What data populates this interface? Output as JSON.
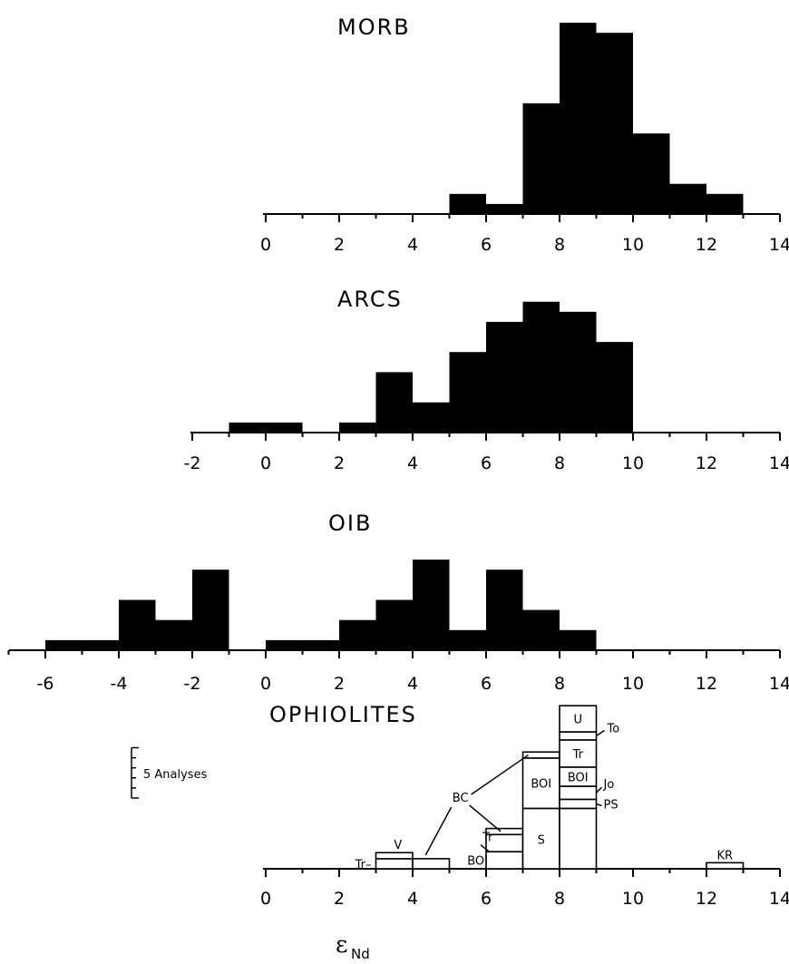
{
  "chart_data": [
    {
      "type": "bar",
      "title": "MORB",
      "xlim": [
        0,
        14
      ],
      "xticks": [
        "0",
        "2",
        "4",
        "6",
        "8",
        "10",
        "12",
        "14"
      ],
      "bins": [
        [
          5,
          6
        ],
        [
          6,
          7
        ],
        [
          7,
          8
        ],
        [
          8,
          9
        ],
        [
          9,
          10
        ],
        [
          10,
          11
        ],
        [
          11,
          12
        ],
        [
          12,
          13
        ]
      ],
      "values": [
        2,
        1,
        11,
        19,
        18,
        8,
        3,
        2
      ]
    },
    {
      "type": "bar",
      "title": "ARCS",
      "xlim": [
        -2,
        14
      ],
      "xticks": [
        "-2",
        "0",
        "2",
        "4",
        "6",
        "8",
        "10",
        "12",
        "14"
      ],
      "bins": [
        [
          -1,
          1
        ],
        [
          2,
          3
        ],
        [
          3,
          4
        ],
        [
          4,
          5
        ],
        [
          5,
          6
        ],
        [
          6,
          7
        ],
        [
          7,
          8
        ],
        [
          8,
          9
        ],
        [
          9,
          10
        ]
      ],
      "values": [
        1,
        1,
        6,
        3,
        8,
        11,
        13,
        12,
        9
      ]
    },
    {
      "type": "bar",
      "title": "OIB",
      "xlim": [
        -7,
        14
      ],
      "xticks": [
        "-6",
        "-4",
        "-2",
        "0",
        "2",
        "4",
        "6",
        "8",
        "10",
        "12",
        "14"
      ],
      "bins": [
        [
          -6,
          -4
        ],
        [
          -4,
          -3
        ],
        [
          -3,
          -2
        ],
        [
          -2,
          -1
        ],
        [
          0,
          2
        ],
        [
          2,
          3
        ],
        [
          3,
          4
        ],
        [
          4,
          5
        ],
        [
          5,
          6
        ],
        [
          6,
          7
        ],
        [
          7,
          8
        ],
        [
          8,
          9
        ]
      ],
      "values": [
        1,
        5,
        3,
        8,
        1,
        3,
        5,
        9,
        2,
        8,
        4,
        2
      ]
    },
    {
      "type": "bar",
      "stacked": true,
      "title": "OPHIOLITES",
      "xlim": [
        0,
        14
      ],
      "xticks": [
        "0",
        "2",
        "4",
        "6",
        "8",
        "10",
        "12",
        "14"
      ],
      "scale_bar_label": "5 Analyses",
      "xlabel": "ε",
      "xlabel_sub": "Nd",
      "stacks": [
        {
          "bin": [
            3,
            4
          ],
          "segments": [
            {
              "label": "Tr–",
              "value": 1
            },
            {
              "label": "V",
              "value": 0.6
            }
          ]
        },
        {
          "bin": [
            4,
            5
          ],
          "segments": [
            {
              "label": "",
              "value": 1
            }
          ]
        },
        {
          "bin": [
            5,
            6
          ],
          "segments": [
            {
              "label": "",
              "value": 0
            }
          ]
        },
        {
          "bin": [
            6,
            7
          ],
          "segments": [
            {
              "label": "BOI",
              "value": 1.7
            },
            {
              "label": "Tr",
              "value": 1.7
            },
            {
              "label": "BC",
              "value": 0.6
            }
          ]
        },
        {
          "bin": [
            7,
            8
          ],
          "segments": [
            {
              "label": "S",
              "value": 6
            },
            {
              "label": "BOI",
              "value": 5
            },
            {
              "label": "BC",
              "value": 0.6
            }
          ]
        },
        {
          "bin": [
            8,
            9
          ],
          "segments": [
            {
              "label": "S",
              "value": 6
            },
            {
              "label": "PS",
              "value": 0.9
            },
            {
              "label": "Jo",
              "value": 1.3
            },
            {
              "label": "BOI",
              "value": 1.9
            },
            {
              "label": "Tr",
              "value": 2.7
            },
            {
              "label": "To",
              "value": 0.8
            },
            {
              "label": "U",
              "value": 2.6
            }
          ]
        },
        {
          "bin": [
            12,
            13
          ],
          "segments": [
            {
              "label": "KR",
              "value": 0.6
            }
          ]
        }
      ]
    }
  ]
}
